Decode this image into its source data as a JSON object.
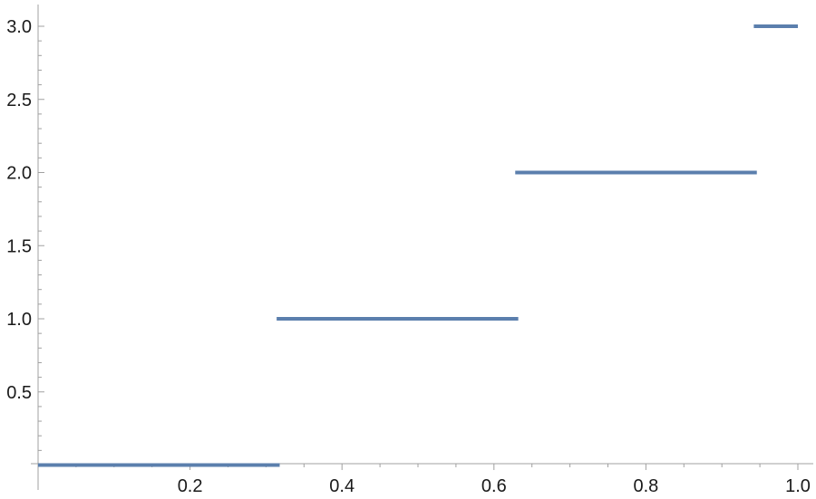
{
  "chart_data": {
    "type": "line",
    "subtype": "step",
    "title": "",
    "xlabel": "",
    "ylabel": "",
    "xlim": [
      0,
      1.0
    ],
    "ylim": [
      -0.02,
      3.1
    ],
    "x_ticks": [
      0.2,
      0.4,
      0.6,
      0.8,
      1.0
    ],
    "x_tick_labels": [
      "0.2",
      "0.4",
      "0.6",
      "0.8",
      "1.0"
    ],
    "y_ticks": [
      0.5,
      1.0,
      1.5,
      2.0,
      2.5,
      3.0
    ],
    "y_tick_labels": [
      "0.5",
      "1.0",
      "1.5",
      "2.0",
      "2.5",
      "3.0"
    ],
    "x_minor_step": 0.05,
    "y_minor_step": 0.1,
    "grid": false,
    "legend": "none",
    "color": "#5b7fad",
    "series": [
      {
        "segments": [
          {
            "x_start": 0.0,
            "x_end": 0.318,
            "y": 0
          },
          {
            "x_start": 0.314,
            "x_end": 0.632,
            "y": 1
          },
          {
            "x_start": 0.628,
            "x_end": 0.946,
            "y": 2
          },
          {
            "x_start": 0.942,
            "x_end": 1.0,
            "y": 3
          }
        ]
      }
    ]
  }
}
